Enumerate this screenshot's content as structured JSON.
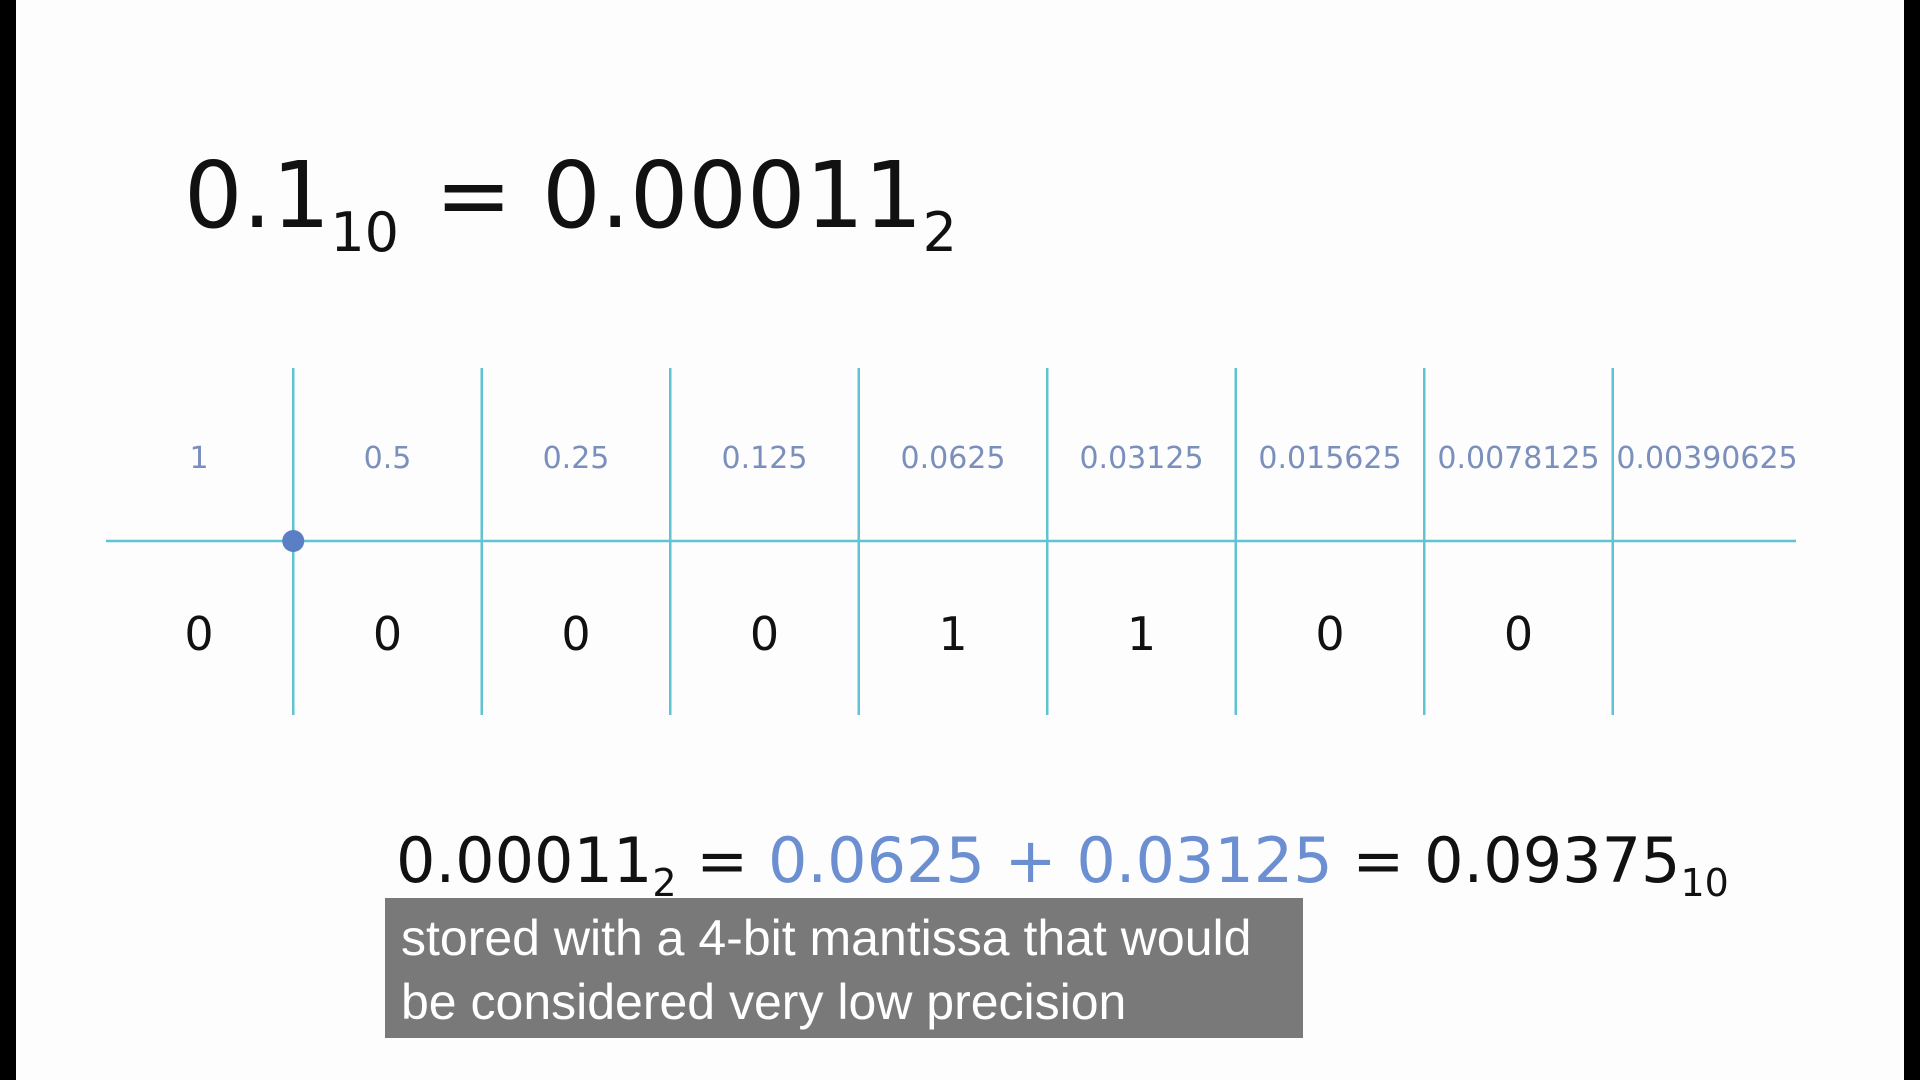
{
  "headline": {
    "left_value": "0.1",
    "left_base": "10",
    "equals": "=",
    "right_value": "0.00011",
    "right_base": "2"
  },
  "place_values": [
    "1",
    "0.5",
    "0.25",
    "0.125",
    "0.0625",
    "0.03125",
    "0.015625",
    "0.0078125",
    "0.00390625"
  ],
  "bits": [
    "0",
    "0",
    "0",
    "0",
    "1",
    "1",
    "0",
    "0"
  ],
  "formula": {
    "binary_value": "0.00011",
    "binary_base": "2",
    "equals_1": "=",
    "term_1": "0.0625",
    "plus": "+",
    "term_2": "0.03125",
    "equals_2": "=",
    "result_value": "0.09375",
    "result_base": "10"
  },
  "caption": {
    "line_1": "stored with a 4-bit mantissa that would",
    "line_2": "be considered very low precision"
  },
  "colors": {
    "grid_line": "#5fc3d3",
    "point_marker": "#5a7fc4",
    "label_text": "#7b8fbd",
    "highlight_terms": "#6b8fd1",
    "caption_background": "#6e6e6e"
  }
}
